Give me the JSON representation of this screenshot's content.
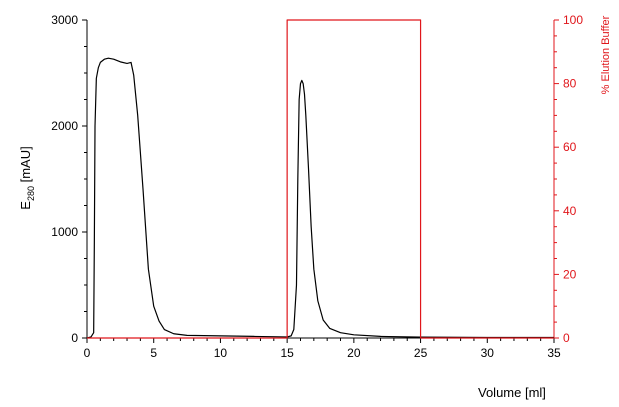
{
  "chart_data": {
    "type": "line",
    "xlabel": "Volume [ml]",
    "ylabel_left": {
      "main": "E",
      "sub": "280",
      "rest": " [mAU]"
    },
    "ylabel_right": "% Elution Buffer",
    "xlim": [
      0,
      35
    ],
    "ylim_left": [
      0,
      3000
    ],
    "ylim_right": [
      0,
      100
    ],
    "x_ticks": [
      0,
      5,
      10,
      15,
      20,
      25,
      30,
      35
    ],
    "y_ticks_left": [
      0,
      1000,
      2000,
      3000
    ],
    "y_ticks_right": [
      0,
      20,
      40,
      60,
      80,
      100
    ],
    "grid": false,
    "colors": {
      "absorbance": "#000000",
      "elution": "#e0161b",
      "axis_left": "#000000",
      "axis_right": "#e0161b"
    },
    "series": [
      {
        "axis": "left",
        "x": [
          0,
          0.3,
          0.5,
          0.55,
          0.6,
          0.7,
          0.85,
          1.0,
          1.3,
          1.6,
          2.0,
          2.5,
          3.0,
          3.3,
          3.5,
          3.8,
          4.2,
          4.6,
          5.0,
          5.4,
          5.8,
          6.5,
          7.5,
          10,
          12.5,
          15.0,
          15.3,
          15.5,
          15.7,
          15.8,
          15.9,
          16.0,
          16.1,
          16.2,
          16.3,
          16.4,
          16.6,
          16.8,
          17.0,
          17.3,
          17.7,
          18.2,
          19.0,
          20.0,
          22.0,
          25.0,
          30.0,
          35.0
        ],
        "y": [
          0,
          10,
          50,
          900,
          2000,
          2450,
          2550,
          2600,
          2630,
          2640,
          2630,
          2605,
          2590,
          2600,
          2480,
          2100,
          1400,
          650,
          300,
          160,
          80,
          40,
          25,
          20,
          15,
          10,
          20,
          80,
          500,
          1500,
          2250,
          2400,
          2430,
          2400,
          2300,
          2100,
          1600,
          1050,
          650,
          350,
          170,
          90,
          50,
          30,
          15,
          8,
          5,
          5
        ]
      },
      {
        "axis": "right",
        "x": [
          0,
          15.0,
          15.0,
          25.0,
          25.0,
          35.0
        ],
        "y": [
          0,
          0,
          100,
          100,
          0,
          0
        ]
      }
    ]
  }
}
